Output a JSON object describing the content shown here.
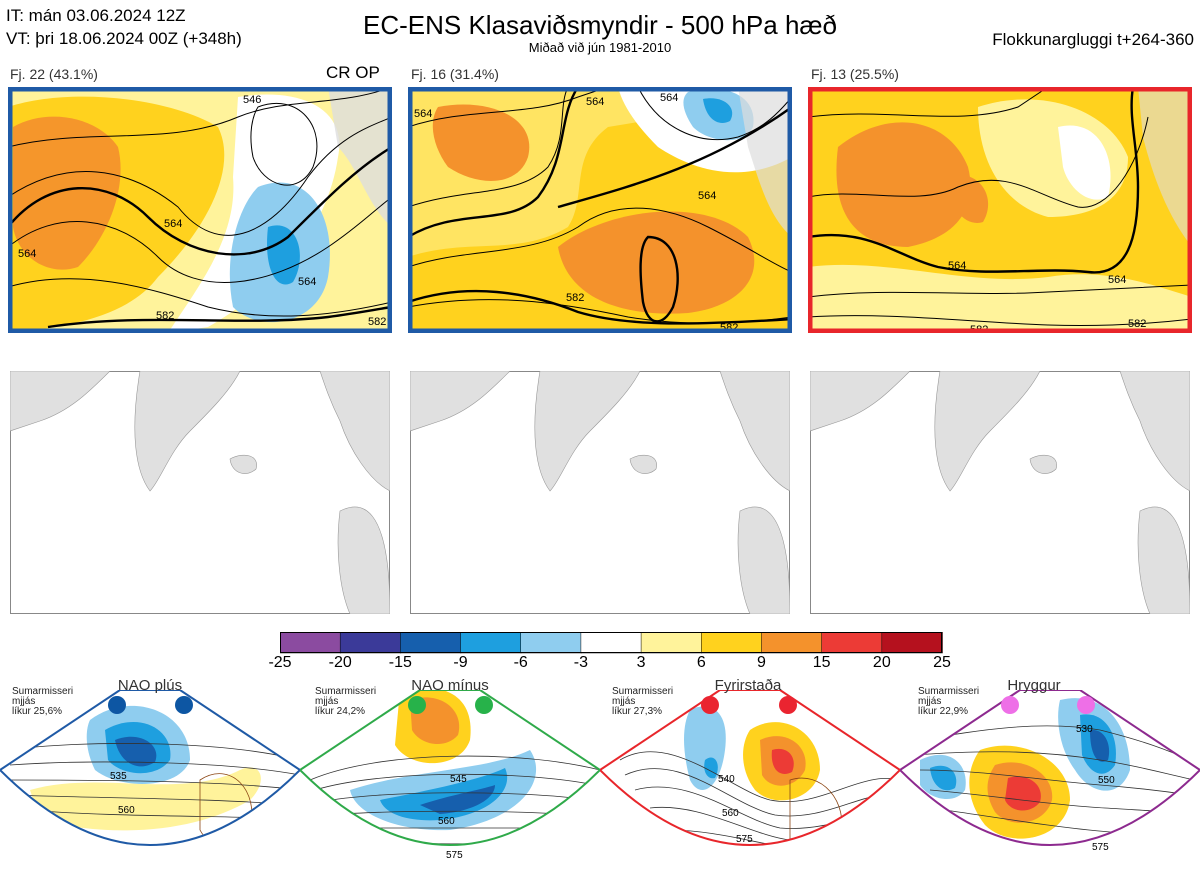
{
  "header": {
    "it_line": "IT: mán 03.06.2024 12Z",
    "vt_line": "VT: þri 18.06.2024 00Z  (+348h)",
    "title": "EC-ENS Klasaviðsmyndir - 500 hPa hæð",
    "subtitle": "Miðað við jún 1981-2010",
    "window": "Flokkunargluggi t+264-360"
  },
  "clusters": [
    {
      "label": "Fj. 22 (43.1%)",
      "border_color": "#1f5aa6",
      "tag": "CR OP",
      "contours": [
        "546",
        "564",
        "564",
        "564",
        "582",
        "582"
      ]
    },
    {
      "label": "Fj. 16 (31.4%)",
      "border_color": "#1f5aa6",
      "tag": "",
      "contours": [
        "564",
        "564",
        "564",
        "564",
        "582",
        "582"
      ]
    },
    {
      "label": "Fj. 13 (25.5%)",
      "border_color": "#e8262b",
      "tag": "",
      "contours": [
        "564",
        "564",
        "582",
        "582"
      ]
    }
  ],
  "colorbar": {
    "ticks": [
      "-25",
      "-20",
      "-15",
      "-9",
      "-6",
      "-3",
      "3",
      "6",
      "9",
      "15",
      "20",
      "25"
    ],
    "colors": [
      "#8b4ba0",
      "#3b3a99",
      "#165fad",
      "#1e9fdf",
      "#8fcdef",
      "#ffffff",
      "#fff39b",
      "#ffd21e",
      "#f4922c",
      "#ec3b36",
      "#b5111e"
    ]
  },
  "regimes": [
    {
      "title": "NAO plús",
      "season": "Sumarmisseri",
      "season2": "mjjás",
      "prob": "líkur 25,6%",
      "frame_color": "#1f5aa6",
      "dot_color": "#0d56a3",
      "contours": [
        "535",
        "560"
      ]
    },
    {
      "title": "NAO mínus",
      "season": "Sumarmisseri",
      "season2": "mjjás",
      "prob": "líkur 24,2%",
      "frame_color": "#2faa4a",
      "dot_color": "#27b24a",
      "contours": [
        "545",
        "560",
        "575"
      ]
    },
    {
      "title": "Fyrirstaða",
      "season": "Sumarmisseri",
      "season2": "mjjás",
      "prob": "líkur 27,3%",
      "frame_color": "#e8262b",
      "dot_color": "#ea2430",
      "contours": [
        "540",
        "560",
        "575"
      ]
    },
    {
      "title": "Hryggur",
      "season": "Sumarmisseri",
      "season2": "mjjás",
      "prob": "líkur 22,9%",
      "frame_color": "#8d2a8f",
      "dot_color": "#ee6fe7",
      "contours": [
        "530",
        "550",
        "575"
      ]
    }
  ]
}
